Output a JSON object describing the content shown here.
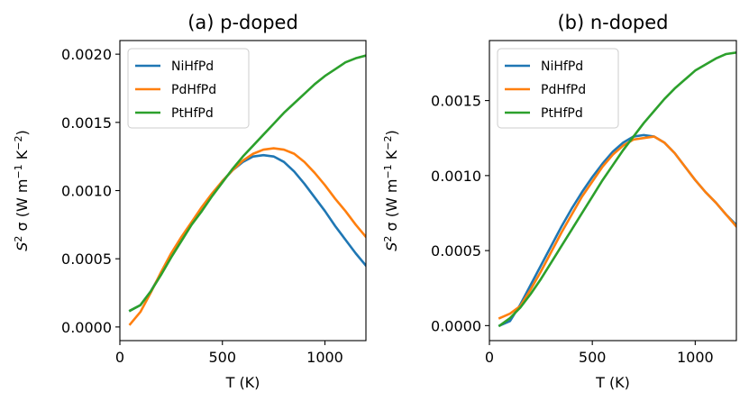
{
  "chart_data": [
    {
      "type": "line",
      "title": "(a) p-doped",
      "xlabel": "T (K)",
      "ylabel_parts": [
        "S",
        "2",
        " σ (W m",
        "−1",
        " K",
        "−2",
        ")"
      ],
      "xlim": [
        0,
        1200
      ],
      "ylim": [
        -0.0001,
        0.0021
      ],
      "xticks": [
        0,
        500,
        1000
      ],
      "xtick_labels": [
        "0",
        "500",
        "1000"
      ],
      "yticks": [
        0.0,
        0.0005,
        0.001,
        0.0015,
        0.002
      ],
      "ytick_labels": [
        "0.0000",
        "0.0005",
        "0.0010",
        "0.0015",
        "0.0020"
      ],
      "legend_position": "upper-left",
      "x": [
        50,
        100,
        150,
        200,
        250,
        300,
        350,
        400,
        450,
        500,
        550,
        600,
        650,
        700,
        750,
        800,
        850,
        900,
        950,
        1000,
        1050,
        1100,
        1150,
        1200
      ],
      "series": [
        {
          "name": "NiHfPd",
          "color": "#1f77b4",
          "values": [
            0.00012,
            0.00016,
            0.00026,
            0.00039,
            0.00052,
            0.00065,
            0.00076,
            0.00087,
            0.00097,
            0.00107,
            0.00115,
            0.00121,
            0.00125,
            0.00126,
            0.00125,
            0.00121,
            0.00114,
            0.00105,
            0.00095,
            0.00085,
            0.00074,
            0.00064,
            0.00054,
            0.00045
          ]
        },
        {
          "name": "PdHfPd",
          "color": "#ff7f0e",
          "values": [
            2e-05,
            0.00011,
            0.00025,
            0.0004,
            0.00054,
            0.00066,
            0.00077,
            0.00088,
            0.00098,
            0.00107,
            0.00115,
            0.00122,
            0.00127,
            0.0013,
            0.00131,
            0.0013,
            0.00127,
            0.00121,
            0.00113,
            0.00104,
            0.00094,
            0.00085,
            0.00075,
            0.00066
          ]
        },
        {
          "name": "PtHfPd",
          "color": "#2ca02c",
          "values": [
            0.00012,
            0.00016,
            0.00026,
            0.00038,
            0.00051,
            0.00063,
            0.00075,
            0.00085,
            0.00096,
            0.00106,
            0.00116,
            0.00125,
            0.00133,
            0.00141,
            0.00149,
            0.00157,
            0.00164,
            0.00171,
            0.00178,
            0.00184,
            0.00189,
            0.00194,
            0.00197,
            0.00199
          ]
        }
      ]
    },
    {
      "type": "line",
      "title": "(b) n-doped",
      "xlabel": "T (K)",
      "ylabel_parts": [
        "S",
        "2",
        " σ (W m",
        "−1",
        " K",
        "−2",
        ")"
      ],
      "xlim": [
        0,
        1200
      ],
      "ylim": [
        -0.0001,
        0.0019
      ],
      "xticks": [
        0,
        500,
        1000
      ],
      "xtick_labels": [
        "0",
        "500",
        "1000"
      ],
      "yticks": [
        0.0,
        0.0005,
        0.001,
        0.0015
      ],
      "ytick_labels": [
        "0.0000",
        "0.0005",
        "0.0010",
        "0.0015"
      ],
      "legend_position": "upper-left",
      "x": [
        50,
        100,
        150,
        200,
        250,
        300,
        350,
        400,
        450,
        500,
        550,
        600,
        650,
        700,
        750,
        800,
        850,
        900,
        950,
        1000,
        1050,
        1100,
        1150,
        1200
      ],
      "series": [
        {
          "name": "NiHfPd",
          "color": "#1f77b4",
          "values": [
            0.0,
            3e-05,
            0.00014,
            0.00027,
            0.0004,
            0.00053,
            0.00066,
            0.00078,
            0.00089,
            0.00099,
            0.00108,
            0.00116,
            0.00122,
            0.00126,
            0.00127,
            0.00126,
            0.00122,
            0.00115,
            0.00106,
            0.00097,
            0.00089,
            0.00082,
            0.00074,
            0.00067
          ]
        },
        {
          "name": "PdHfPd",
          "color": "#ff7f0e",
          "values": [
            5e-05,
            8e-05,
            0.00013,
            0.00024,
            0.00036,
            0.00049,
            0.00062,
            0.00074,
            0.00086,
            0.00096,
            0.00106,
            0.00114,
            0.0012,
            0.00124,
            0.00125,
            0.00126,
            0.00122,
            0.00115,
            0.00106,
            0.00097,
            0.00089,
            0.00082,
            0.00074,
            0.00066
          ]
        },
        {
          "name": "PtHfPd",
          "color": "#2ca02c",
          "values": [
            0.0,
            5e-05,
            0.00012,
            0.00021,
            0.00031,
            0.00042,
            0.00053,
            0.00064,
            0.00075,
            0.00086,
            0.00097,
            0.00107,
            0.00117,
            0.00126,
            0.00135,
            0.00143,
            0.00151,
            0.00158,
            0.00164,
            0.0017,
            0.00174,
            0.00178,
            0.00181,
            0.00182
          ]
        }
      ]
    }
  ]
}
